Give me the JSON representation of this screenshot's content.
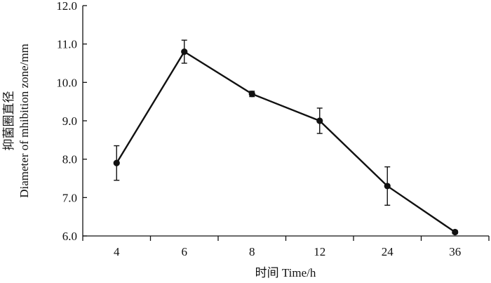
{
  "chart_data": {
    "type": "line",
    "title": "",
    "xlabel": "时间 Time/h",
    "ylabel_cn": "抑菌圈直径",
    "ylabel_en": "Diameter of mhibition zone/mm",
    "categories": [
      "4",
      "6",
      "8",
      "12",
      "24",
      "36"
    ],
    "series": [
      {
        "values": [
          7.9,
          10.8,
          9.7,
          9.0,
          7.3,
          6.1
        ],
        "error": [
          0.45,
          0.3,
          0.07,
          0.33,
          0.5,
          0.04
        ],
        "color": "#111111",
        "marker": "circle"
      }
    ],
    "ylim": [
      6.0,
      12.0
    ],
    "yticks": [
      "6.0",
      "7.0",
      "8.0",
      "9.0",
      "10.0",
      "11.0",
      "12.0"
    ],
    "grid": false,
    "legend": "none"
  }
}
